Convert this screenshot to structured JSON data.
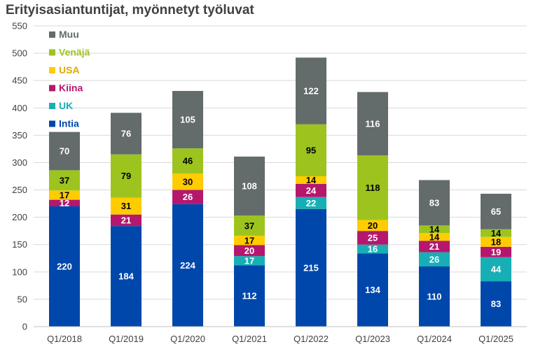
{
  "chart_data": {
    "type": "bar",
    "stacked": true,
    "title": "Erityisasiantuntijat, myönnetyt työluvat",
    "xlabel": "",
    "ylabel": "",
    "ylim": [
      0,
      550
    ],
    "yticks": [
      0,
      50,
      100,
      150,
      200,
      250,
      300,
      350,
      400,
      450,
      500,
      550
    ],
    "grid": true,
    "legend_position": "top-left",
    "categories": [
      "Q1/2018",
      "Q1/2019",
      "Q1/2020",
      "Q1/2021",
      "Q1/2022",
      "Q1/2023",
      "Q1/2024",
      "Q1/2025"
    ],
    "series": [
      {
        "name": "Intia",
        "color": "#0047AB",
        "label_color": "#ffffff",
        "values": [
          220,
          184,
          224,
          112,
          215,
          134,
          110,
          83
        ]
      },
      {
        "name": "UK",
        "color": "#17AFB5",
        "label_color": "#ffffff",
        "values": [
          0,
          0,
          0,
          17,
          22,
          16,
          26,
          44
        ]
      },
      {
        "name": "Kiina",
        "color": "#B5176E",
        "label_color": "#ffffff",
        "values": [
          12,
          21,
          26,
          20,
          24,
          25,
          21,
          19
        ]
      },
      {
        "name": "USA",
        "color": "#FFCC00",
        "label_color": "#000000",
        "values": [
          17,
          31,
          30,
          17,
          14,
          20,
          14,
          18
        ]
      },
      {
        "name": "Venäjä",
        "color": "#9DC41E",
        "label_color": "#000000",
        "values": [
          37,
          79,
          46,
          37,
          95,
          118,
          14,
          14
        ]
      },
      {
        "name": "Muu",
        "color": "#646B6B",
        "label_color": "#ffffff",
        "values": [
          70,
          76,
          105,
          108,
          122,
          116,
          83,
          65
        ]
      }
    ],
    "legend_order": [
      "Muu",
      "Venäjä",
      "USA",
      "Kiina",
      "UK",
      "Intia"
    ],
    "legend_text_colors": {
      "Muu": "#646B6B",
      "Venäjä": "#9DC41E",
      "USA": "#E0A800",
      "Kiina": "#B5176E",
      "UK": "#17AFB5",
      "Intia": "#0047AB"
    }
  }
}
